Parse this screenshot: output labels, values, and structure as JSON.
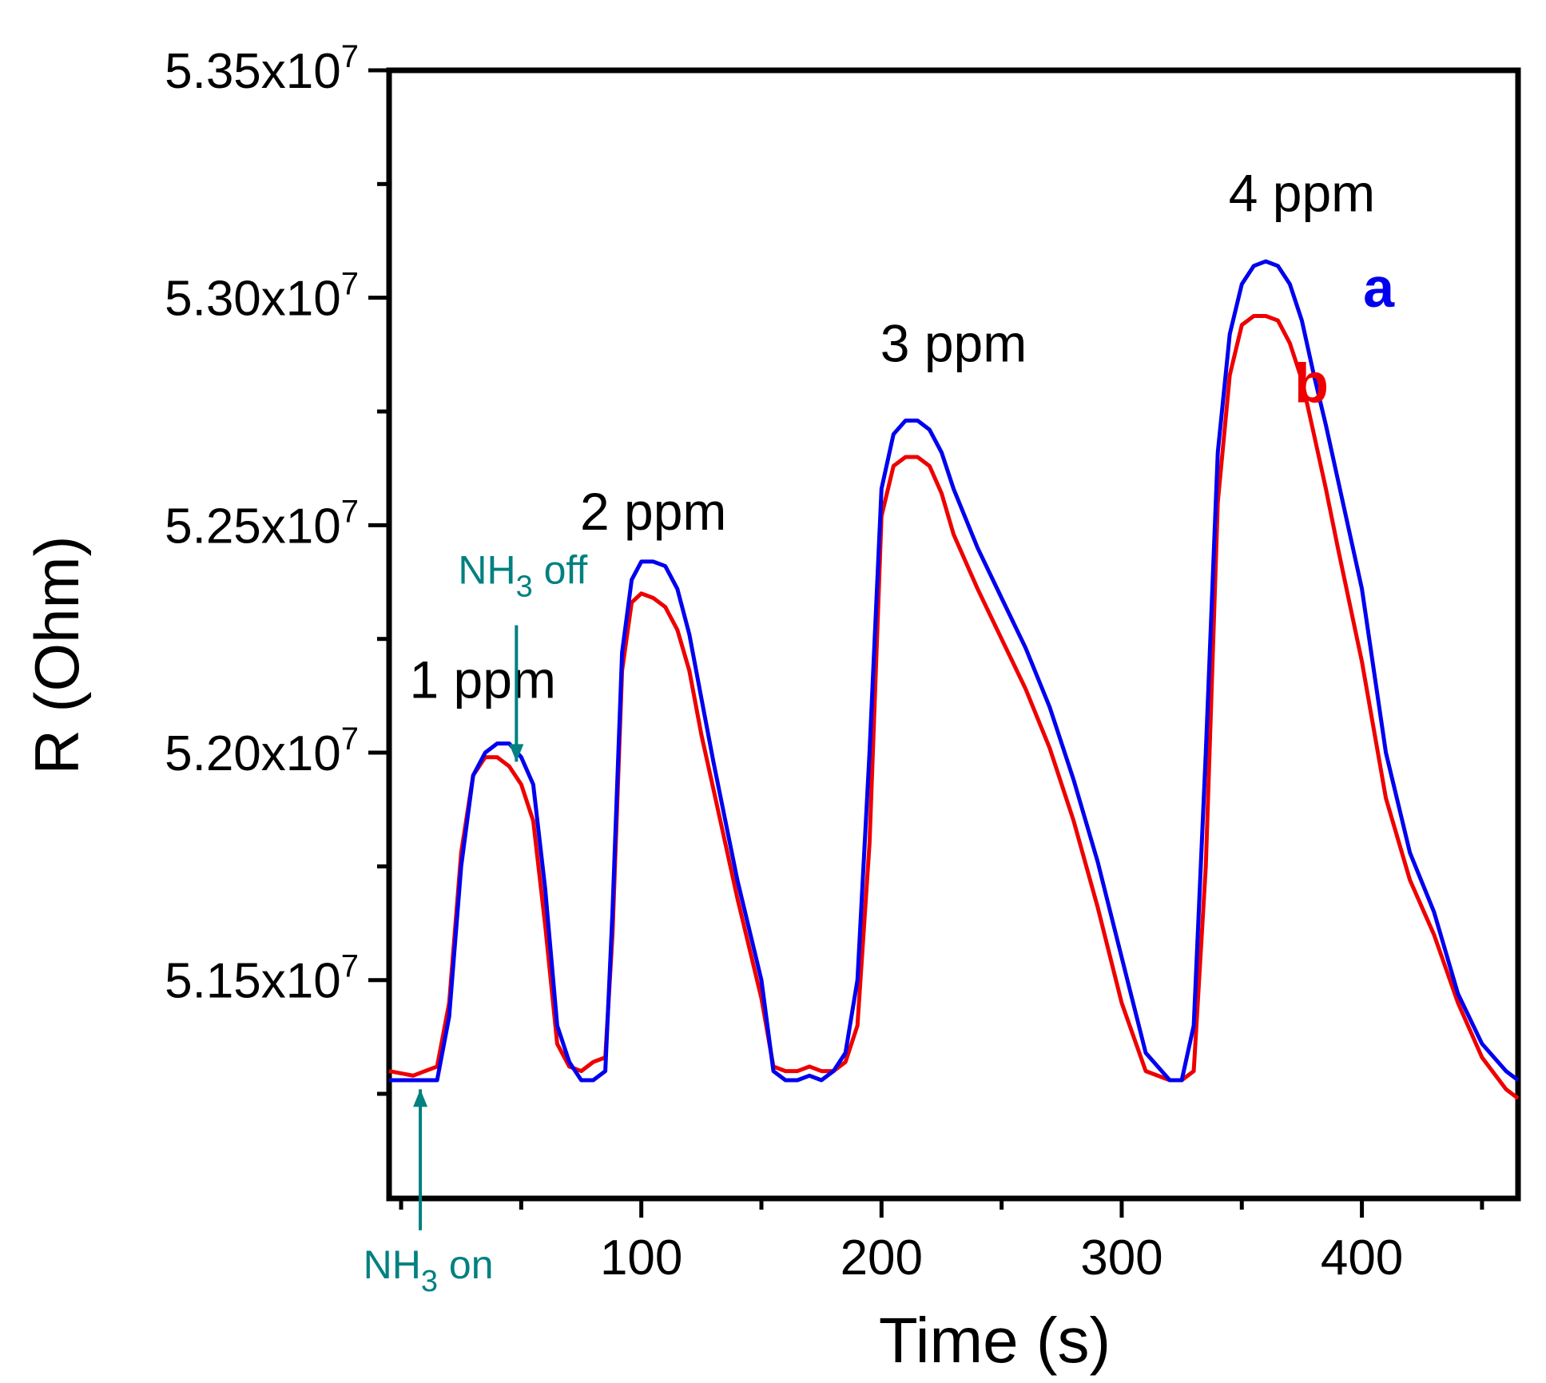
{
  "chart_data": {
    "type": "line",
    "title": "",
    "xlabel": "Time (s)",
    "ylabel": "R (Ohm)",
    "xlim": [
      -5,
      465
    ],
    "ylim": [
      51.02,
      53.5
    ],
    "y_scale_note": "values in units of 10^6 Ohm",
    "x_ticks": [
      100,
      200,
      300,
      400
    ],
    "x_tick_labels": [
      "100",
      "200",
      "300",
      "400"
    ],
    "y_ticks": [
      51.5,
      52.0,
      52.5,
      53.0,
      53.5
    ],
    "y_tick_mantissas": [
      "5.15x10",
      "5.20x10",
      "5.25x10",
      "5.30x10",
      "5.35x10"
    ],
    "y_tick_exponent": "7",
    "grid": false,
    "series": [
      {
        "name": "a",
        "label": "a",
        "color": "#0000ee",
        "x": [
          -5,
          5,
          10,
          15,
          20,
          25,
          30,
          35,
          40,
          45,
          50,
          55,
          60,
          65,
          70,
          75,
          80,
          85,
          88,
          92,
          96,
          100,
          105,
          110,
          115,
          120,
          125,
          130,
          140,
          150,
          155,
          160,
          165,
          170,
          175,
          180,
          185,
          190,
          195,
          200,
          205,
          210,
          215,
          220,
          225,
          230,
          240,
          250,
          260,
          270,
          280,
          290,
          300,
          310,
          320,
          325,
          330,
          335,
          340,
          345,
          350,
          355,
          360,
          365,
          370,
          375,
          380,
          385,
          390,
          400,
          410,
          420,
          430,
          440,
          450,
          460,
          465
        ],
        "y": [
          51.28,
          51.28,
          51.28,
          51.28,
          51.42,
          51.75,
          51.95,
          52.0,
          52.02,
          52.02,
          51.99,
          51.93,
          51.7,
          51.4,
          51.32,
          51.28,
          51.28,
          51.3,
          51.65,
          52.22,
          52.38,
          52.42,
          52.42,
          52.41,
          52.36,
          52.26,
          52.12,
          51.98,
          51.72,
          51.5,
          51.3,
          51.28,
          51.28,
          51.29,
          51.28,
          51.3,
          51.34,
          51.5,
          52.0,
          52.58,
          52.7,
          52.73,
          52.73,
          52.71,
          52.66,
          52.58,
          52.45,
          52.34,
          52.23,
          52.1,
          51.94,
          51.76,
          51.55,
          51.34,
          51.28,
          51.28,
          51.4,
          52.0,
          52.66,
          52.92,
          53.03,
          53.07,
          53.08,
          53.07,
          53.03,
          52.95,
          52.83,
          52.72,
          52.6,
          52.36,
          52.0,
          51.78,
          51.65,
          51.47,
          51.36,
          51.3,
          51.28
        ]
      },
      {
        "name": "b",
        "label": "b",
        "color": "#ee0000",
        "x": [
          -5,
          5,
          10,
          15,
          20,
          25,
          30,
          35,
          40,
          45,
          50,
          55,
          60,
          65,
          70,
          75,
          80,
          85,
          88,
          92,
          96,
          100,
          105,
          110,
          115,
          120,
          125,
          130,
          140,
          150,
          155,
          160,
          165,
          170,
          175,
          180,
          185,
          190,
          195,
          200,
          205,
          210,
          215,
          220,
          225,
          230,
          240,
          250,
          260,
          270,
          280,
          290,
          300,
          310,
          320,
          325,
          330,
          335,
          340,
          345,
          350,
          355,
          360,
          365,
          370,
          375,
          380,
          385,
          390,
          400,
          410,
          420,
          430,
          440,
          450,
          460,
          465
        ],
        "y": [
          51.3,
          51.29,
          51.3,
          51.31,
          51.45,
          51.78,
          51.95,
          51.99,
          51.99,
          51.97,
          51.93,
          51.85,
          51.62,
          51.36,
          51.31,
          51.3,
          51.32,
          51.33,
          51.6,
          52.18,
          52.33,
          52.35,
          52.34,
          52.32,
          52.27,
          52.18,
          52.04,
          51.92,
          51.68,
          51.46,
          51.31,
          51.3,
          51.3,
          51.31,
          51.3,
          51.3,
          51.32,
          51.4,
          51.8,
          52.52,
          52.63,
          52.65,
          52.65,
          52.63,
          52.57,
          52.48,
          52.36,
          52.25,
          52.14,
          52.01,
          51.85,
          51.66,
          51.45,
          51.3,
          51.28,
          51.28,
          51.3,
          51.75,
          52.55,
          52.83,
          52.94,
          52.96,
          52.96,
          52.95,
          52.9,
          52.82,
          52.7,
          52.58,
          52.45,
          52.2,
          51.9,
          51.72,
          51.6,
          51.45,
          51.33,
          51.26,
          51.24
        ]
      }
    ],
    "annotations": [
      {
        "text": "1 ppm",
        "x": 34,
        "y": 52.12,
        "color": "#000000"
      },
      {
        "text": "2 ppm",
        "x": 105,
        "y": 52.49,
        "color": "#000000"
      },
      {
        "text": "3 ppm",
        "x": 230,
        "y": 52.86,
        "color": "#000000"
      },
      {
        "text": "4 ppm",
        "x": 375,
        "y": 53.19,
        "color": "#000000"
      },
      {
        "text": "a",
        "x": 407,
        "y": 52.98,
        "color": "#0000ee"
      },
      {
        "text": "b",
        "x": 379,
        "y": 52.77,
        "color": "#ee0000"
      }
    ],
    "events": [
      {
        "label_main": "NH",
        "label_sub": "3",
        "label_tail": " on",
        "x": 8,
        "y_tip": 51.26,
        "y_tail": 50.95,
        "direction": "up",
        "color": "#008080"
      },
      {
        "label_main": "NH",
        "label_sub": "3",
        "label_tail": " off",
        "x": 48,
        "y_tip": 51.98,
        "y_tail": 52.28,
        "direction": "down",
        "color": "#008080"
      }
    ]
  }
}
